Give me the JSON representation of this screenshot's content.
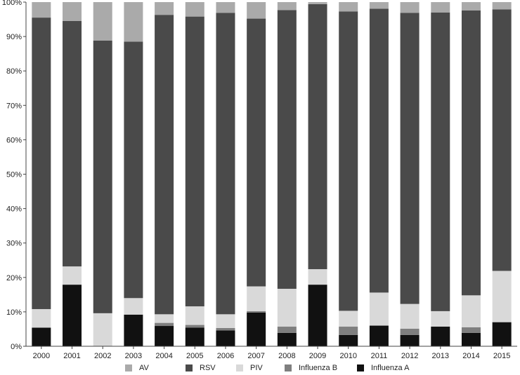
{
  "chart_data": {
    "type": "bar",
    "stacked": true,
    "percent": true,
    "categories": [
      "2000",
      "2001",
      "2002",
      "2003",
      "2004",
      "2005",
      "2006",
      "2007",
      "2008",
      "2009",
      "2010",
      "2011",
      "2012",
      "2013",
      "2014",
      "2015"
    ],
    "ylim": [
      0,
      100
    ],
    "yticks": [
      "0%",
      "10%",
      "20%",
      "30%",
      "40%",
      "50%",
      "60%",
      "70%",
      "80%",
      "90%",
      "100%"
    ],
    "grid": false,
    "legend_position": "bottom",
    "series": [
      {
        "name": "Influenza A",
        "color": "#111111",
        "values": [
          5.4,
          17.9,
          0.0,
          9.2,
          5.9,
          5.4,
          4.6,
          9.8,
          3.9,
          17.9,
          3.3,
          6.0,
          3.3,
          5.7,
          3.9,
          7.0
        ]
      },
      {
        "name": "Influenza B",
        "color": "#7f7f7f",
        "values": [
          0.0,
          0.0,
          0.0,
          0.0,
          0.9,
          0.8,
          0.7,
          0.4,
          1.8,
          0.0,
          2.4,
          0.0,
          1.8,
          0.0,
          1.6,
          0.0
        ]
      },
      {
        "name": "PIV",
        "color": "#d9d9d9",
        "values": [
          5.4,
          5.3,
          9.6,
          4.8,
          2.5,
          5.4,
          4.0,
          7.2,
          11.0,
          4.5,
          4.6,
          9.6,
          7.2,
          4.5,
          9.3,
          14.9
        ]
      },
      {
        "name": "RSV",
        "color": "#4a4a4a",
        "values": [
          84.7,
          71.3,
          79.2,
          74.5,
          87.0,
          84.2,
          87.6,
          77.8,
          81.0,
          77.0,
          87.0,
          82.5,
          84.6,
          86.8,
          82.8,
          76.0
        ]
      },
      {
        "name": "AV",
        "color": "#aaaaaa",
        "values": [
          4.5,
          5.5,
          11.2,
          11.5,
          3.7,
          4.2,
          3.1,
          4.8,
          2.3,
          0.6,
          2.7,
          1.9,
          3.1,
          3.0,
          2.4,
          2.1
        ]
      }
    ],
    "legend_order": [
      "AV",
      "RSV",
      "PIV",
      "Influenza B",
      "Influenza A"
    ]
  }
}
